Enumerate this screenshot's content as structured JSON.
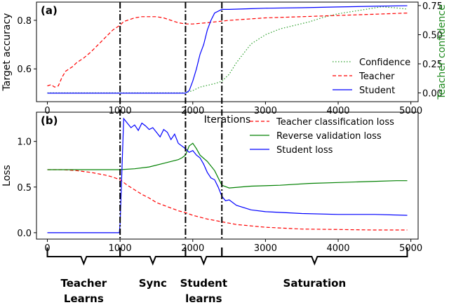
{
  "chart_data": [
    {
      "panel": "(a)",
      "type": "line",
      "xlabel": "Iterations",
      "ylabel": "Target accuracy",
      "y2label": "Teacher confidence",
      "xlim": [
        -150,
        5100
      ],
      "ylim": [
        0.465,
        0.875
      ],
      "y2lim": [
        -0.075,
        0.78
      ],
      "xticks": [
        0,
        1000,
        2000,
        3000,
        4000,
        5000
      ],
      "yticks": [
        0.6,
        0.8
      ],
      "y2ticks": [
        0.0,
        0.25,
        0.5,
        0.75
      ],
      "xtick_labels": [
        "0",
        "1000",
        "2000",
        "3000",
        "4000",
        "5000"
      ],
      "ytick_labels": [
        "0.6",
        "0.8"
      ],
      "y2tick_labels": [
        "0.00",
        "0.25",
        "0.50",
        "0.75"
      ],
      "legend_position": "lower right",
      "grid": false,
      "series": [
        {
          "name": "Confidence",
          "axis": "right",
          "color": "#2ca02c",
          "style": "dotted",
          "x": [
            0,
            1000,
            1500,
            1900,
            2000,
            2100,
            2300,
            2400,
            2500,
            2600,
            2700,
            2800,
            3000,
            3200,
            3400,
            3600,
            3800,
            4000,
            4200,
            4400,
            4600,
            4800,
            4950
          ],
          "values": [
            0.0,
            0.0,
            0.0,
            0.0,
            0.02,
            0.05,
            0.08,
            0.1,
            0.16,
            0.26,
            0.34,
            0.42,
            0.5,
            0.55,
            0.58,
            0.61,
            0.65,
            0.68,
            0.7,
            0.72,
            0.74,
            0.73,
            0.72
          ]
        },
        {
          "name": "Teacher",
          "axis": "left",
          "color": "#ff0000",
          "style": "dashed",
          "x": [
            0,
            50,
            100,
            150,
            200,
            250,
            300,
            350,
            400,
            500,
            600,
            700,
            800,
            900,
            1000,
            1050,
            1100,
            1200,
            1300,
            1400,
            1500,
            1600,
            1700,
            1800,
            1900,
            2000,
            2200,
            2500,
            3000,
            3500,
            4000,
            4500,
            4950
          ],
          "values": [
            0.53,
            0.535,
            0.525,
            0.53,
            0.565,
            0.59,
            0.6,
            0.61,
            0.625,
            0.645,
            0.67,
            0.7,
            0.73,
            0.76,
            0.78,
            0.795,
            0.8,
            0.81,
            0.815,
            0.815,
            0.815,
            0.81,
            0.8,
            0.79,
            0.785,
            0.785,
            0.79,
            0.8,
            0.81,
            0.815,
            0.82,
            0.825,
            0.83
          ]
        },
        {
          "name": "Student",
          "axis": "left",
          "color": "#0000ff",
          "style": "solid",
          "x": [
            0,
            1000,
            1500,
            1900,
            1950,
            2000,
            2050,
            2100,
            2150,
            2200,
            2250,
            2300,
            2400,
            2500,
            2800,
            3000,
            3500,
            4000,
            4500,
            4950
          ],
          "values": [
            0.5,
            0.5,
            0.5,
            0.5,
            0.51,
            0.55,
            0.6,
            0.66,
            0.7,
            0.76,
            0.8,
            0.83,
            0.845,
            0.845,
            0.848,
            0.85,
            0.852,
            0.855,
            0.858,
            0.86
          ]
        }
      ],
      "vlines": [
        1000,
        1900,
        2400
      ]
    },
    {
      "panel": "(b)",
      "type": "line",
      "xlabel": "",
      "ylabel": "Loss",
      "xlim": [
        -150,
        5100
      ],
      "ylim": [
        -0.07,
        1.32
      ],
      "xticks": [
        0,
        1000,
        2000,
        3000,
        4000,
        5000
      ],
      "yticks": [
        0.0,
        0.5,
        1.0
      ],
      "xtick_labels": [
        "0",
        "1000",
        "2000",
        "3000",
        "4000",
        "5000"
      ],
      "ytick_labels": [
        "0.0",
        "0.5",
        "1.0"
      ],
      "legend_position": "upper right",
      "grid": false,
      "series": [
        {
          "name": "Teacher classification loss",
          "color": "#ff0000",
          "style": "dashed",
          "x": [
            0,
            200,
            400,
            600,
            800,
            900,
            1000,
            1100,
            1200,
            1300,
            1400,
            1500,
            1600,
            1700,
            1800,
            1900,
            2000,
            2200,
            2400,
            2600,
            3000,
            3500,
            4000,
            4500,
            4950
          ],
          "values": [
            0.69,
            0.69,
            0.68,
            0.66,
            0.63,
            0.61,
            0.58,
            0.52,
            0.47,
            0.42,
            0.38,
            0.33,
            0.3,
            0.27,
            0.24,
            0.22,
            0.19,
            0.15,
            0.12,
            0.09,
            0.06,
            0.04,
            0.035,
            0.03,
            0.03
          ]
        },
        {
          "name": "Reverse validation loss",
          "color": "#008000",
          "style": "solid",
          "x": [
            0,
            500,
            1000,
            1200,
            1400,
            1600,
            1700,
            1800,
            1850,
            1900,
            1950,
            2000,
            2050,
            2100,
            2200,
            2300,
            2400,
            2500,
            2800,
            3200,
            3600,
            4000,
            4400,
            4800,
            4950
          ],
          "values": [
            0.69,
            0.69,
            0.69,
            0.7,
            0.72,
            0.76,
            0.78,
            0.8,
            0.82,
            0.85,
            0.95,
            0.98,
            0.92,
            0.85,
            0.78,
            0.68,
            0.52,
            0.49,
            0.51,
            0.52,
            0.54,
            0.55,
            0.56,
            0.57,
            0.57
          ]
        },
        {
          "name": "Student loss",
          "color": "#0000ff",
          "style": "solid",
          "x": [
            0,
            990,
            1000,
            1020,
            1050,
            1100,
            1150,
            1200,
            1250,
            1300,
            1350,
            1400,
            1450,
            1500,
            1550,
            1600,
            1650,
            1700,
            1750,
            1800,
            1850,
            1900,
            1950,
            2000,
            2050,
            2100,
            2150,
            2200,
            2250,
            2300,
            2350,
            2400,
            2450,
            2500,
            2600,
            2800,
            3000,
            3500,
            4000,
            4500,
            4950
          ],
          "values": [
            0.0,
            0.0,
            0.1,
            0.55,
            1.25,
            1.2,
            1.15,
            1.18,
            1.12,
            1.2,
            1.17,
            1.13,
            1.15,
            1.1,
            1.05,
            1.13,
            1.1,
            1.02,
            1.08,
            0.98,
            0.95,
            0.92,
            0.88,
            0.9,
            0.85,
            0.82,
            0.75,
            0.66,
            0.6,
            0.58,
            0.5,
            0.4,
            0.35,
            0.36,
            0.3,
            0.25,
            0.23,
            0.21,
            0.2,
            0.2,
            0.19
          ]
        }
      ],
      "vlines": [
        1000,
        1900,
        2400
      ]
    }
  ],
  "phases": [
    {
      "label_lines": [
        "Teacher",
        "Learns"
      ],
      "x_start": 0,
      "x_end": 1000
    },
    {
      "label_lines": [
        "Sync"
      ],
      "x_start": 1000,
      "x_end": 1900
    },
    {
      "label_lines": [
        "Student",
        "learns"
      ],
      "x_start": 1900,
      "x_end": 2400
    },
    {
      "label_lines": [
        "Saturation"
      ],
      "x_start": 2400,
      "x_end": 4950
    }
  ]
}
